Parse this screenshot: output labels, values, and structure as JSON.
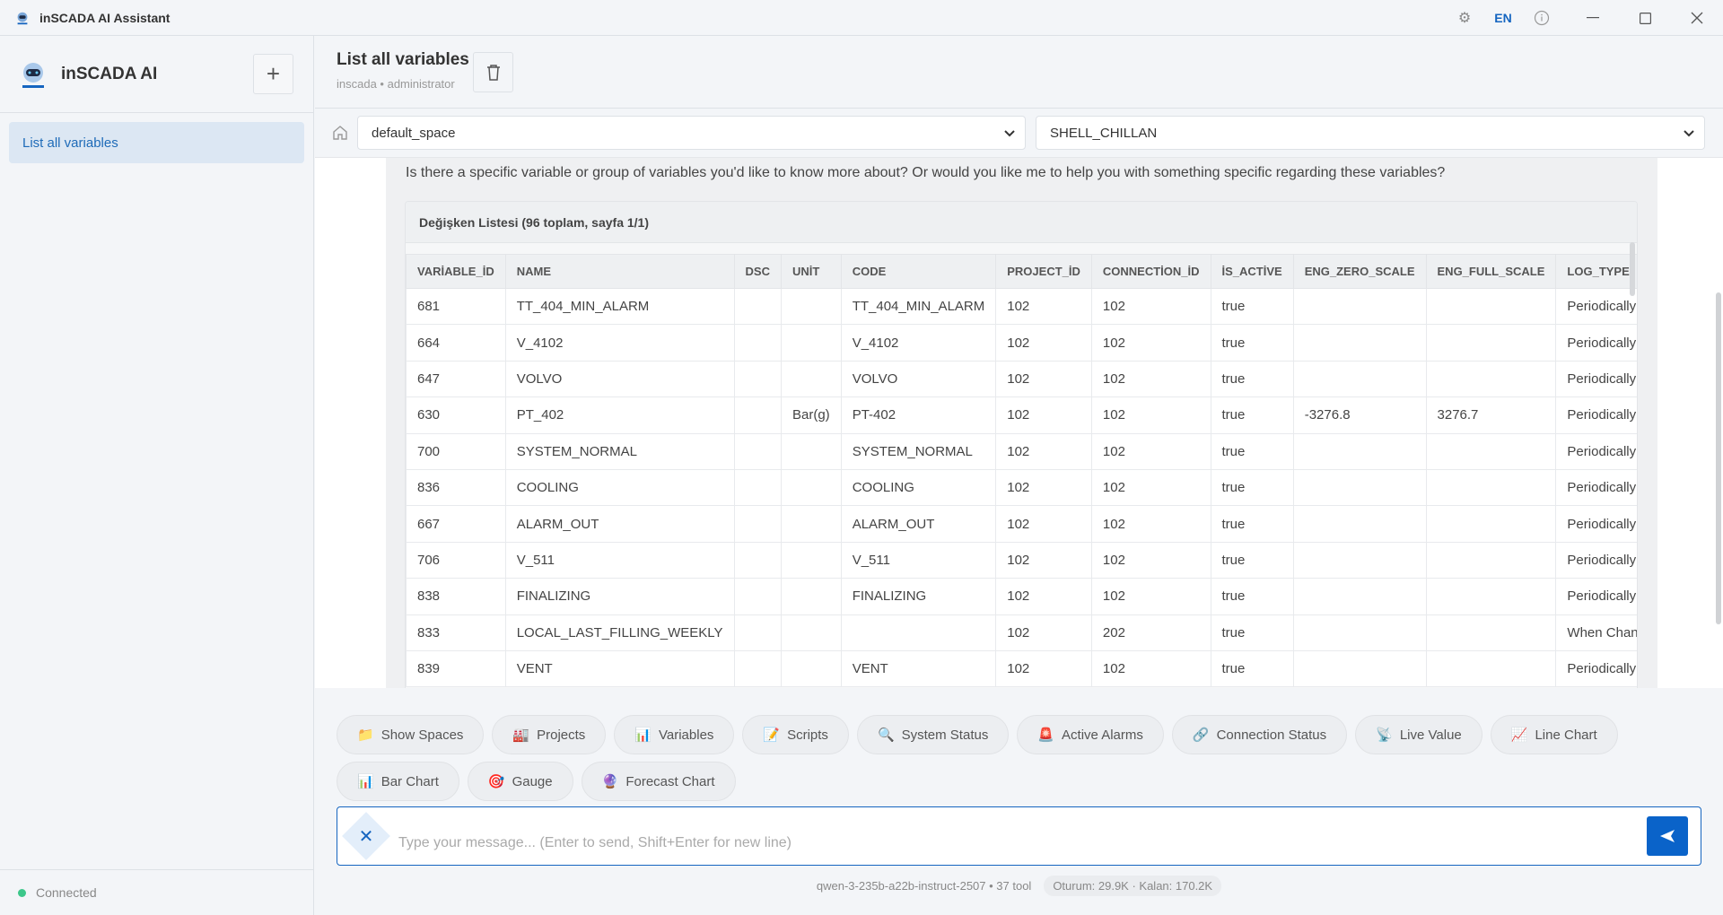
{
  "titlebar": {
    "title": "inSCADA AI Assistant",
    "lang": "EN"
  },
  "sidebar": {
    "app_name": "inSCADA AI",
    "items": [
      {
        "label": "List all variables",
        "active": true
      }
    ],
    "status": "Connected",
    "status_color": "#3cc78a"
  },
  "header": {
    "title": "List all variables",
    "subtitle": "inscada • administrator"
  },
  "selectors": {
    "space": "default_space",
    "project": "SHELL_CHILLAN"
  },
  "message": {
    "text": "Is there a specific variable or group of variables you'd like to know more about? Or would you like me to help you with something specific regarding these variables?"
  },
  "table": {
    "title": "Değişken Listesi (96 toplam, sayfa 1/1)",
    "columns": [
      "VARİABLE_İD",
      "NAME",
      "DSC",
      "UNİT",
      "CODE",
      "PROJECT_İD",
      "CONNECTİON_İD",
      "İS_ACTİVE",
      "ENG_ZERO_SCALE",
      "ENG_FULL_SCALE",
      "LOG_TYPE"
    ],
    "rows": [
      [
        "681",
        "TT_404_MIN_ALARM",
        "",
        "",
        "TT_404_MIN_ALARM",
        "102",
        "102",
        "true",
        "",
        "",
        "Periodically"
      ],
      [
        "664",
        "V_4102",
        "",
        "",
        "V_4102",
        "102",
        "102",
        "true",
        "",
        "",
        "Periodically"
      ],
      [
        "647",
        "VOLVO",
        "",
        "",
        "VOLVO",
        "102",
        "102",
        "true",
        "",
        "",
        "Periodically"
      ],
      [
        "630",
        "PT_402",
        "",
        "Bar(g)",
        "PT-402",
        "102",
        "102",
        "true",
        "-3276.8",
        "3276.7",
        "Periodically"
      ],
      [
        "700",
        "SYSTEM_NORMAL",
        "",
        "",
        "SYSTEM_NORMAL",
        "102",
        "102",
        "true",
        "",
        "",
        "Periodically"
      ],
      [
        "836",
        "COOLING",
        "",
        "",
        "COOLING",
        "102",
        "102",
        "true",
        "",
        "",
        "Periodically"
      ],
      [
        "667",
        "ALARM_OUT",
        "",
        "",
        "ALARM_OUT",
        "102",
        "102",
        "true",
        "",
        "",
        "Periodically"
      ],
      [
        "706",
        "V_511",
        "",
        "",
        "V_511",
        "102",
        "102",
        "true",
        "",
        "",
        "Periodically"
      ],
      [
        "838",
        "FINALIZING",
        "",
        "",
        "FINALIZING",
        "102",
        "102",
        "true",
        "",
        "",
        "Periodically"
      ],
      [
        "833",
        "LOCAL_LAST_FILLING_WEEKLY",
        "",
        "",
        "",
        "102",
        "202",
        "true",
        "",
        "",
        "When Changed"
      ],
      [
        "839",
        "VENT",
        "",
        "",
        "VENT",
        "102",
        "102",
        "true",
        "",
        "",
        "Periodically"
      ]
    ]
  },
  "quick_actions": [
    {
      "icon": "📁",
      "label": "Show Spaces"
    },
    {
      "icon": "🏭",
      "label": "Projects"
    },
    {
      "icon": "📊",
      "label": "Variables"
    },
    {
      "icon": "📝",
      "label": "Scripts"
    },
    {
      "icon": "🔍",
      "label": "System Status"
    },
    {
      "icon": "🚨",
      "label": "Active Alarms"
    },
    {
      "icon": "🔗",
      "label": "Connection Status"
    },
    {
      "icon": "📡",
      "label": "Live Value"
    },
    {
      "icon": "📈",
      "label": "Line Chart"
    },
    {
      "icon": "📊",
      "label": "Bar Chart"
    },
    {
      "icon": "🎯",
      "label": "Gauge"
    },
    {
      "icon": "🔮",
      "label": "Forecast Chart"
    }
  ],
  "input": {
    "placeholder": "Type your message... (Enter to send, Shift+Enter for new line)",
    "value": ""
  },
  "footer": {
    "model": "qwen-3-235b-a22b-instruct-2507 • 37 tool",
    "tokens": "Oturum: 29.9K · Kalan: 170.2K"
  },
  "colors": {
    "accent": "#1565c0",
    "send": "#0a63c9",
    "active_item_bg": "#dce7f3"
  }
}
